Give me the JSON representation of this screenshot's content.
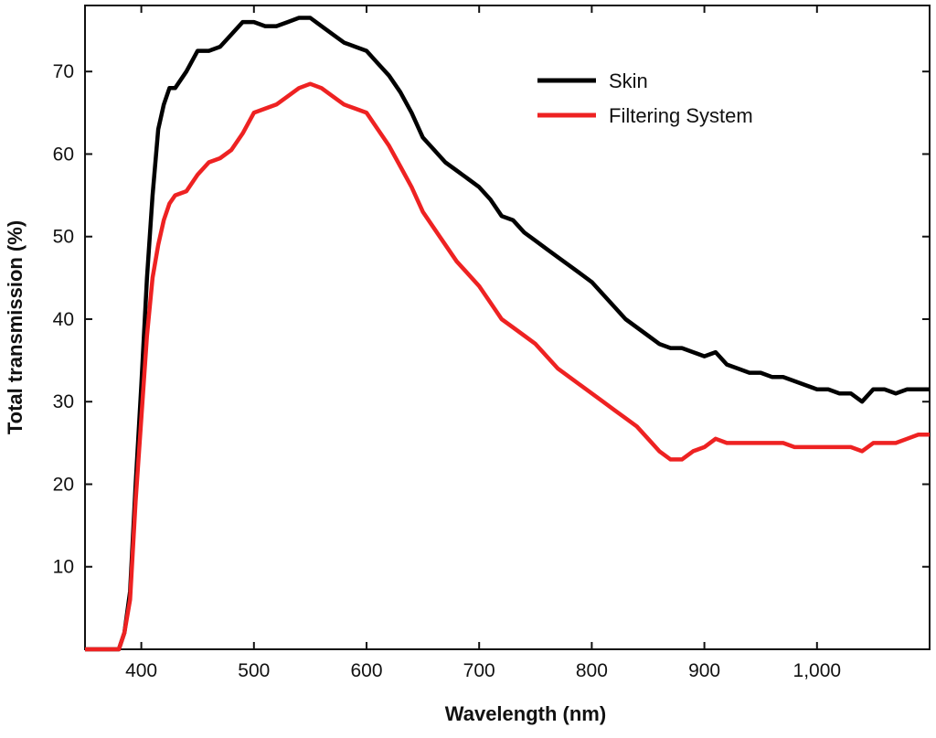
{
  "chart_data": {
    "type": "line",
    "title": "",
    "xlabel": "Wavelength (nm)",
    "ylabel": "Total transmission (%)",
    "xlim": [
      350,
      1100
    ],
    "ylim": [
      0,
      78
    ],
    "grid": false,
    "legend_position": "top-right",
    "x_ticks": [
      400,
      500,
      600,
      700,
      800,
      900,
      1000
    ],
    "x_tick_labels": [
      "400",
      "500",
      "600",
      "700",
      "800",
      "900",
      "1,000"
    ],
    "y_ticks": [
      10,
      20,
      30,
      40,
      50,
      60,
      70
    ],
    "y_tick_labels": [
      "10",
      "20",
      "30",
      "40",
      "50",
      "60",
      "70"
    ],
    "series": [
      {
        "name": "Skin",
        "color": "#000000",
        "x": [
          350,
          380,
          385,
          390,
          395,
          400,
          405,
          410,
          415,
          420,
          425,
          430,
          440,
          450,
          460,
          470,
          480,
          490,
          500,
          510,
          520,
          530,
          540,
          550,
          560,
          570,
          580,
          590,
          600,
          610,
          620,
          630,
          640,
          650,
          660,
          670,
          680,
          690,
          700,
          710,
          720,
          730,
          740,
          750,
          760,
          770,
          780,
          790,
          800,
          810,
          820,
          830,
          840,
          850,
          860,
          870,
          880,
          890,
          900,
          910,
          920,
          930,
          940,
          950,
          960,
          970,
          980,
          990,
          1000,
          1010,
          1020,
          1030,
          1040,
          1050,
          1060,
          1070,
          1080,
          1090,
          1100
        ],
        "values": [
          0,
          0,
          2,
          7,
          20,
          32,
          45,
          55,
          63,
          66,
          68,
          68,
          70,
          72.5,
          72.5,
          73,
          74.5,
          76,
          76,
          75.5,
          75.5,
          76,
          76.5,
          76.5,
          75.5,
          74.5,
          73.5,
          73,
          72.5,
          71,
          69.5,
          67.5,
          65,
          62,
          60.5,
          59,
          58,
          57,
          56,
          54.5,
          52.5,
          52,
          50.5,
          49.5,
          48.5,
          47.5,
          46.5,
          45.5,
          44.5,
          43,
          41.5,
          40,
          39,
          38,
          37,
          36.5,
          36.5,
          36,
          35.5,
          36,
          34.5,
          34,
          33.5,
          33.5,
          33,
          33,
          32.5,
          32,
          31.5,
          31.5,
          31,
          31,
          30,
          31.5,
          31.5,
          31,
          31.5,
          31.5,
          31.5
        ]
      },
      {
        "name": "Filtering System",
        "color": "#ee2222",
        "x": [
          350,
          380,
          385,
          390,
          395,
          400,
          405,
          410,
          415,
          420,
          425,
          430,
          440,
          450,
          460,
          470,
          480,
          490,
          500,
          510,
          520,
          530,
          540,
          550,
          560,
          570,
          580,
          590,
          600,
          610,
          620,
          630,
          640,
          650,
          660,
          670,
          680,
          690,
          700,
          710,
          720,
          730,
          740,
          750,
          760,
          770,
          780,
          790,
          800,
          810,
          820,
          830,
          840,
          850,
          860,
          870,
          880,
          890,
          900,
          910,
          920,
          930,
          940,
          950,
          960,
          970,
          980,
          990,
          1000,
          1010,
          1020,
          1030,
          1040,
          1050,
          1060,
          1070,
          1080,
          1090,
          1100
        ],
        "values": [
          0,
          0,
          2,
          6,
          18,
          28,
          38,
          45,
          49,
          52,
          54,
          55,
          55.5,
          57.5,
          59,
          59.5,
          60.5,
          62.5,
          65,
          65.5,
          66,
          67,
          68,
          68.5,
          68,
          67,
          66,
          65.5,
          65,
          63,
          61,
          58.5,
          56,
          53,
          51,
          49,
          47,
          45.5,
          44,
          42,
          40,
          39,
          38,
          37,
          35.5,
          34,
          33,
          32,
          31,
          30,
          29,
          28,
          27,
          25.5,
          24,
          23,
          23,
          24,
          24.5,
          25.5,
          25,
          25,
          25,
          25,
          25,
          25,
          24.5,
          24.5,
          24.5,
          24.5,
          24.5,
          24.5,
          24,
          25,
          25,
          25,
          25.5,
          26,
          26
        ]
      }
    ]
  }
}
